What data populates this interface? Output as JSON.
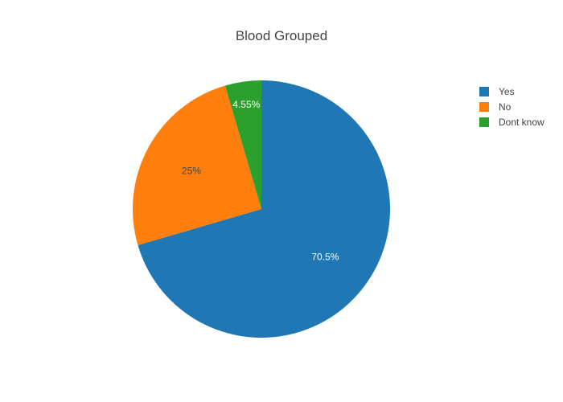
{
  "chart_data": {
    "type": "pie",
    "title": "Blood Grouped",
    "categories": [
      "Yes",
      "No",
      "Dont know"
    ],
    "values": [
      70.5,
      25,
      4.55
    ],
    "labels": [
      "70.5%",
      "25%",
      "4.55%"
    ],
    "colors": [
      "#1f77b4",
      "#ff7f0e",
      "#2ca02c"
    ],
    "label_colors": [
      "#ffffff",
      "#444444",
      "#ffffff"
    ],
    "legend_position": "top-right",
    "start": "top",
    "direction": "clockwise"
  }
}
